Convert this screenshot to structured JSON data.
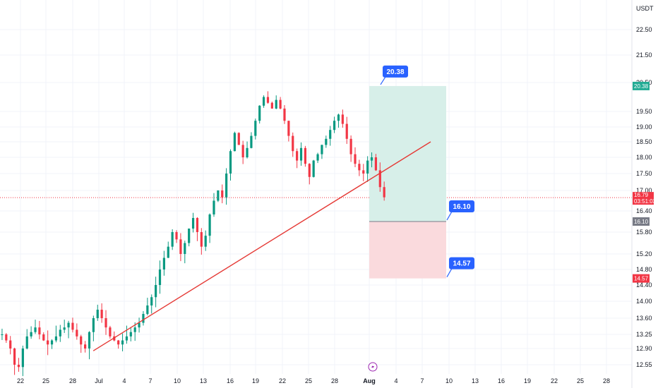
{
  "chart_data": {
    "type": "candlestick",
    "currency_label": "USDT",
    "y_axis": {
      "range": [
        12.3,
        23.4
      ],
      "tick_labels": [
        "22.50",
        "21.50",
        "20.50",
        "19.50",
        "19.00",
        "18.50",
        "18.00",
        "17.50",
        "17.00",
        "16.40",
        "15.80",
        "15.20",
        "14.80",
        "14.40",
        "14.00",
        "13.60",
        "13.25",
        "12.90",
        "12.55"
      ]
    },
    "x_axis": {
      "tick_labels": [
        "22",
        "25",
        "28",
        "Jul",
        "4",
        "7",
        "10",
        "13",
        "16",
        "19",
        "22",
        "25",
        "28",
        "Aug",
        "4",
        "7",
        "10",
        "13",
        "16",
        "19",
        "22",
        "25",
        "28"
      ],
      "highlighted_label": "Aug"
    },
    "candles": {
      "start_price": 13.25,
      "path": [
        13.25,
        13.1,
        12.9,
        12.55,
        12.5,
        12.9,
        13.2,
        13.3,
        13.4,
        13.25,
        13.1,
        13.0,
        13.1,
        13.2,
        13.35,
        13.4,
        13.5,
        13.35,
        13.2,
        13.0,
        12.9,
        13.3,
        13.6,
        13.8,
        13.6,
        13.4,
        13.2,
        13.1,
        13.0,
        13.1,
        13.2,
        13.3,
        13.4,
        13.5,
        13.7,
        13.9,
        14.1,
        14.4,
        14.8,
        15.1,
        15.4,
        15.8,
        15.6,
        15.2,
        15.5,
        15.9,
        16.2,
        15.8,
        15.4,
        15.7,
        16.3,
        16.7,
        17.0,
        16.8,
        17.5,
        18.2,
        18.8,
        18.4,
        18.0,
        18.3,
        18.7,
        19.2,
        19.7,
        20.0,
        19.8,
        19.6,
        19.9,
        19.6,
        19.2,
        18.7,
        18.2,
        17.9,
        18.3,
        17.8,
        17.4,
        17.9,
        18.1,
        18.4,
        18.6,
        18.9,
        19.2,
        19.4,
        19.1,
        18.6,
        18.1,
        17.8,
        17.6,
        17.5,
        17.9,
        18.0,
        17.6,
        17.1,
        16.8
      ],
      "up_color": "#089981",
      "down_color": "#f23645"
    },
    "current_price": {
      "label": "16.79",
      "countdown": "03:51:03",
      "color": "#f23645"
    },
    "position_tool": {
      "target": {
        "label": "20.38",
        "color": "#22ab94"
      },
      "entry": {
        "label": "16.10",
        "color": "#787b86"
      },
      "stop": {
        "label": "14.57",
        "color": "#f23645"
      },
      "profit_fill": "#d7efe9",
      "loss_fill": "#fadadd",
      "callout_color": "#2962ff"
    },
    "trendline": {
      "from": [
        8.2,
        12.85
      ],
      "to": [
        46.2,
        18.5
      ],
      "color": "#e53935"
    },
    "grid": true
  }
}
